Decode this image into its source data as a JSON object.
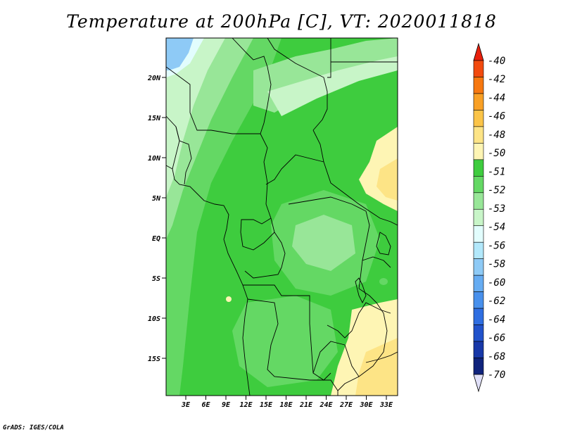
{
  "title": "Temperature at 200hPa [C], VT: 2020011818",
  "credit": "GrADS: IGES/COLA",
  "map": {
    "lat_ticks": [
      "20N",
      "15N",
      "10N",
      "5N",
      "EQ",
      "5S",
      "10S",
      "15S"
    ],
    "lon_ticks": [
      "3E",
      "6E",
      "9E",
      "12E",
      "15E",
      "18E",
      "21E",
      "24E",
      "27E",
      "30E",
      "33E"
    ]
  },
  "colorbar": {
    "labels": [
      "-40",
      "-42",
      "-44",
      "-46",
      "-48",
      "-50",
      "-51",
      "-52",
      "-53",
      "-54",
      "-56",
      "-58",
      "-60",
      "-62",
      "-64",
      "-66",
      "-68",
      "-70"
    ],
    "colors": [
      "#e8200c",
      "#f24a0e",
      "#f77810",
      "#f9a025",
      "#fbc448",
      "#fde486",
      "#fef5b4",
      "#3ecc3e",
      "#64d864",
      "#98e698",
      "#c8f5c8",
      "#e2fdfd",
      "#b2e8fb",
      "#8ecaf6",
      "#66acf2",
      "#4890ec",
      "#2f6ee1",
      "#2152cb",
      "#1838a8",
      "#0f237c",
      "#e0e0f8"
    ]
  }
}
